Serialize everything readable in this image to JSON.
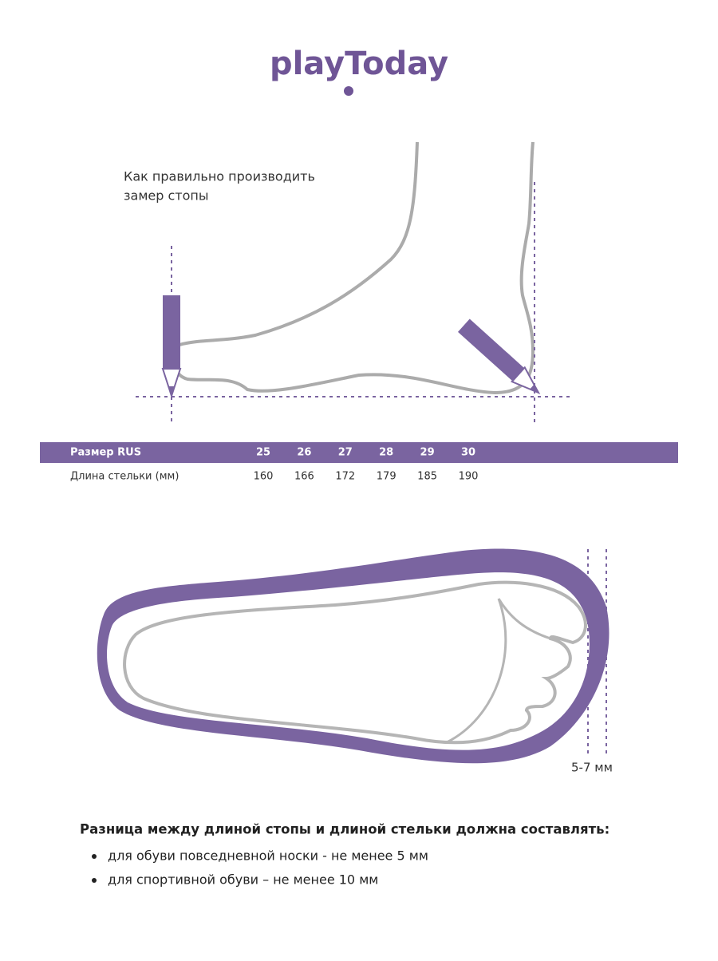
{
  "logo": "playToday",
  "instruction": [
    "Как правильно производить",
    "замер стопы"
  ],
  "table": {
    "header": {
      "label": "Размер RUS",
      "values": [
        25,
        26,
        27,
        28,
        29,
        30
      ]
    },
    "row": {
      "label": "Длина стельки (мм)",
      "values": [
        160,
        166,
        172,
        179,
        185,
        190
      ]
    }
  },
  "gap_label": "5-7 мм",
  "note": {
    "heading": "Разница между длиной стопы и длиной стельки должна составлять:",
    "bullets": [
      "для обуви повседневной носки -  не менее 5 мм",
      "для спортивной обуви – не менее 10 мм"
    ]
  }
}
